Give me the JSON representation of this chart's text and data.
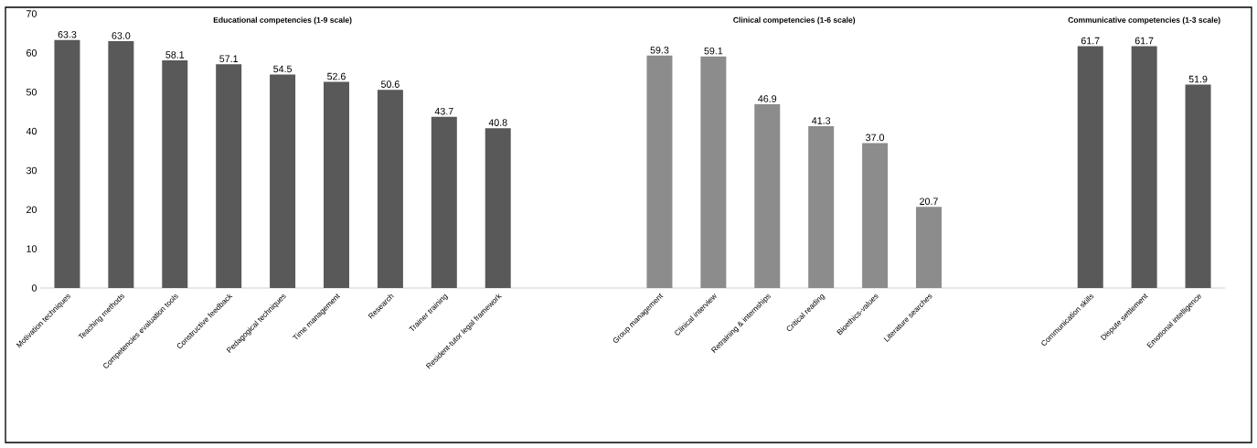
{
  "chart_data": {
    "type": "bar",
    "categories": [
      "Motivation techniques",
      "Teaching methods",
      "Competencies evaluation tools",
      "Constructive feedback",
      "Pedagogical techniques",
      "Time management",
      "Research",
      "Trainer training",
      "Resident-tutor legal framework",
      null,
      null,
      "Group management",
      "Clinical interview",
      "Retraining & internships",
      "Critical reading",
      "Bioethics-values",
      "Literature searches",
      null,
      null,
      "Communication skills",
      "Dispute settlement",
      "Emotional intelligence"
    ],
    "values": [
      63.3,
      63.0,
      58.1,
      57.1,
      54.5,
      52.6,
      50.6,
      43.7,
      40.8,
      null,
      null,
      59.3,
      59.1,
      46.9,
      41.3,
      37.0,
      20.7,
      null,
      null,
      61.7,
      61.7,
      51.9
    ],
    "value_labels": [
      "63.3",
      "63.0",
      "58.1",
      "57.1",
      "54.5",
      "52.6",
      "50.6",
      "43.7",
      "40.8",
      null,
      null,
      "59.3",
      "59.1",
      "46.9",
      "41.3",
      "37.0",
      "20.7",
      null,
      null,
      "61.7",
      "61.7",
      "51.9"
    ],
    "colors": [
      "#595959",
      "#595959",
      "#595959",
      "#595959",
      "#595959",
      "#595959",
      "#595959",
      "#595959",
      "#595959",
      null,
      null,
      "#8c8c8c",
      "#8c8c8c",
      "#8c8c8c",
      "#8c8c8c",
      "#8c8c8c",
      "#8c8c8c",
      null,
      null,
      "#595959",
      "#595959",
      "#595959"
    ],
    "annotations": [
      "Educational competencies (1-9 scale)",
      "Clinical competencies (1-6 scale)",
      "Communicative competencies (1-3 scale)"
    ],
    "ylim": [
      0,
      70
    ],
    "yticks": [
      0,
      10,
      20,
      30,
      40,
      50,
      60,
      70
    ]
  }
}
